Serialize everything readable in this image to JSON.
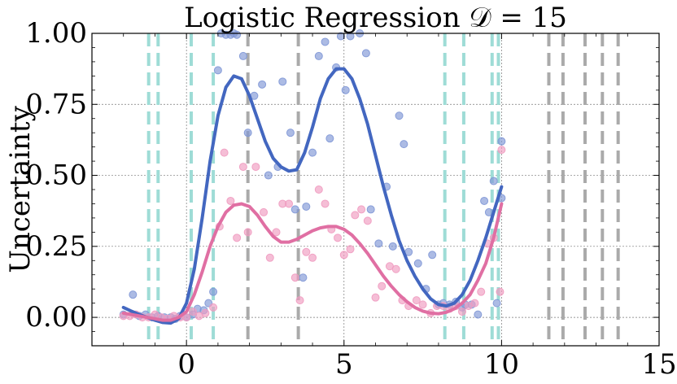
{
  "chart_data": {
    "type": "scatter",
    "title": "Logistic Regression 𝒟 = 15",
    "xlabel": "",
    "ylabel": "Uncertainty",
    "xlim": [
      -3,
      15
    ],
    "ylim": [
      -0.1,
      1.0
    ],
    "xticks": [
      0,
      5,
      10,
      15
    ],
    "xtick_labels": [
      "0",
      "5",
      "10",
      "15"
    ],
    "yticks": [
      0.0,
      0.25,
      0.5,
      0.75,
      1.0
    ],
    "ytick_labels": [
      "0.00",
      "0.25",
      "0.50",
      "0.75",
      "1.00"
    ],
    "grid": true,
    "grid_style": "dotted-gray",
    "legend": "none",
    "colors": {
      "blue_series": "#4367c0",
      "blue_points": "#7f97d6",
      "pink_series": "#e06fa3",
      "pink_points": "#ef9bc0",
      "cyan_vlines": "#9edcd6",
      "gray_vlines": "#aaaaaa"
    },
    "vlines_cyan": [
      -1.2,
      -0.9,
      0.15,
      0.85,
      8.2,
      8.8,
      9.7,
      9.9
    ],
    "vlines_gray": [
      1.95,
      3.55,
      11.5,
      11.95,
      12.65,
      13.2,
      13.7
    ],
    "series": [
      {
        "line_color": "#4367c0",
        "line_x": [
          -2.0,
          -1.75,
          -1.5,
          -1.25,
          -1.0,
          -0.75,
          -0.5,
          -0.25,
          0.0,
          0.25,
          0.5,
          0.75,
          1.0,
          1.25,
          1.5,
          1.75,
          2.0,
          2.25,
          2.5,
          2.75,
          3.0,
          3.25,
          3.5,
          3.75,
          4.0,
          4.25,
          4.5,
          4.75,
          5.0,
          5.25,
          5.5,
          5.75,
          6.0,
          6.25,
          6.5,
          6.75,
          7.0,
          7.25,
          7.5,
          7.75,
          8.0,
          8.25,
          8.5,
          8.75,
          9.0,
          9.25,
          9.5,
          9.75,
          10.0
        ],
        "line_y": [
          0.035,
          0.022,
          0.01,
          0.0,
          -0.01,
          -0.018,
          -0.02,
          -0.005,
          0.05,
          0.17,
          0.35,
          0.55,
          0.71,
          0.81,
          0.85,
          0.84,
          0.78,
          0.7,
          0.62,
          0.56,
          0.53,
          0.515,
          0.52,
          0.58,
          0.67,
          0.77,
          0.84,
          0.875,
          0.875,
          0.84,
          0.77,
          0.68,
          0.57,
          0.46,
          0.36,
          0.27,
          0.2,
          0.145,
          0.1,
          0.065,
          0.045,
          0.04,
          0.05,
          0.08,
          0.13,
          0.2,
          0.28,
          0.37,
          0.46
        ],
        "points_x": [
          -2.0,
          -1.7,
          -1.5,
          -1.3,
          -1.1,
          -0.9,
          -0.7,
          -0.5,
          -0.35,
          -0.2,
          0.0,
          0.2,
          0.35,
          0.55,
          0.7,
          0.85,
          1.0,
          1.1,
          1.25,
          1.4,
          1.5,
          1.6,
          1.8,
          1.95,
          2.15,
          2.4,
          2.6,
          2.9,
          3.05,
          3.3,
          3.45,
          3.7,
          3.8,
          4.0,
          4.2,
          4.4,
          4.55,
          4.75,
          4.9,
          5.05,
          5.2,
          5.5,
          5.7,
          5.85,
          6.1,
          6.35,
          6.55,
          6.75,
          6.9,
          7.05,
          7.35,
          7.6,
          7.8,
          8.0,
          8.15,
          8.35,
          8.55,
          8.75,
          8.85,
          9.05,
          9.25,
          9.45,
          9.6,
          9.75,
          9.85,
          10.0
        ],
        "points_y": [
          0.01,
          0.08,
          0.005,
          0.01,
          0.0,
          0.005,
          0.0,
          0.0,
          -0.005,
          0.005,
          0.0,
          0.01,
          0.03,
          0.025,
          0.05,
          0.09,
          0.87,
          1.0,
          0.995,
          0.995,
          1.0,
          0.995,
          0.92,
          0.65,
          0.78,
          0.82,
          0.5,
          0.53,
          0.83,
          0.65,
          0.38,
          0.14,
          0.39,
          0.58,
          0.92,
          0.97,
          0.63,
          0.88,
          0.99,
          0.8,
          0.99,
          1.0,
          0.93,
          0.38,
          0.26,
          0.46,
          0.25,
          0.71,
          0.61,
          0.23,
          0.19,
          0.1,
          0.22,
          0.045,
          0.05,
          0.045,
          0.055,
          0.035,
          0.045,
          0.045,
          0.01,
          0.41,
          0.37,
          0.48,
          0.05,
          0.42
        ],
        "points_right_x": [
          10.0
        ],
        "points_right_y": [
          0.62
        ]
      },
      {
        "line_color": "#e06fa3",
        "line_x": [
          -2.0,
          -1.75,
          -1.5,
          -1.25,
          -1.0,
          -0.75,
          -0.5,
          -0.25,
          0.0,
          0.25,
          0.5,
          0.75,
          1.0,
          1.25,
          1.5,
          1.75,
          2.0,
          2.25,
          2.5,
          2.75,
          3.0,
          3.25,
          3.5,
          3.75,
          4.0,
          4.25,
          4.5,
          4.75,
          5.0,
          5.25,
          5.5,
          5.75,
          6.0,
          6.25,
          6.5,
          6.75,
          7.0,
          7.25,
          7.5,
          7.75,
          8.0,
          8.25,
          8.5,
          8.75,
          9.0,
          9.25,
          9.5,
          9.75,
          10.0
        ],
        "line_y": [
          0.015,
          0.01,
          0.005,
          0.0,
          -0.005,
          -0.01,
          -0.01,
          0.0,
          0.02,
          0.08,
          0.16,
          0.25,
          0.32,
          0.37,
          0.395,
          0.4,
          0.39,
          0.36,
          0.32,
          0.285,
          0.265,
          0.265,
          0.275,
          0.29,
          0.305,
          0.315,
          0.32,
          0.32,
          0.31,
          0.29,
          0.26,
          0.225,
          0.185,
          0.145,
          0.11,
          0.08,
          0.055,
          0.035,
          0.022,
          0.015,
          0.013,
          0.018,
          0.03,
          0.05,
          0.08,
          0.13,
          0.19,
          0.28,
          0.4
        ],
        "points_x": [
          -2.0,
          -1.8,
          -1.6,
          -1.4,
          -1.2,
          -1.0,
          -0.8,
          -0.6,
          -0.4,
          -0.2,
          0.0,
          0.2,
          0.4,
          0.6,
          0.85,
          1.05,
          1.2,
          1.4,
          1.6,
          1.8,
          1.95,
          2.2,
          2.45,
          2.65,
          2.85,
          3.05,
          3.25,
          3.45,
          3.6,
          3.8,
          4.0,
          4.2,
          4.4,
          4.6,
          4.8,
          5.0,
          5.2,
          5.35,
          5.55,
          5.75,
          6.0,
          6.2,
          6.45,
          6.65,
          6.85,
          7.05,
          7.3,
          7.5,
          7.75,
          7.95,
          8.15,
          8.35,
          8.55,
          8.75,
          8.95,
          9.15,
          9.35,
          9.55,
          9.75,
          9.95
        ],
        "points_y": [
          0.005,
          0.005,
          0.01,
          0.0,
          0.0,
          0.01,
          0.0,
          -0.005,
          0.005,
          0.0,
          0.0,
          0.02,
          0.005,
          0.015,
          0.035,
          0.32,
          0.58,
          0.41,
          0.28,
          0.53,
          0.3,
          0.53,
          0.37,
          0.21,
          0.3,
          0.4,
          0.4,
          0.14,
          0.06,
          0.23,
          0.21,
          0.45,
          0.4,
          0.31,
          0.28,
          0.22,
          0.24,
          0.36,
          0.38,
          0.34,
          0.07,
          0.11,
          0.18,
          0.17,
          0.06,
          0.04,
          0.06,
          0.045,
          0.015,
          0.04,
          0.04,
          0.03,
          0.04,
          0.02,
          0.04,
          0.05,
          0.09,
          0.26,
          0.28,
          0.09
        ],
        "points_right_x": [
          10.0
        ],
        "points_right_y": [
          0.59
        ]
      }
    ]
  }
}
